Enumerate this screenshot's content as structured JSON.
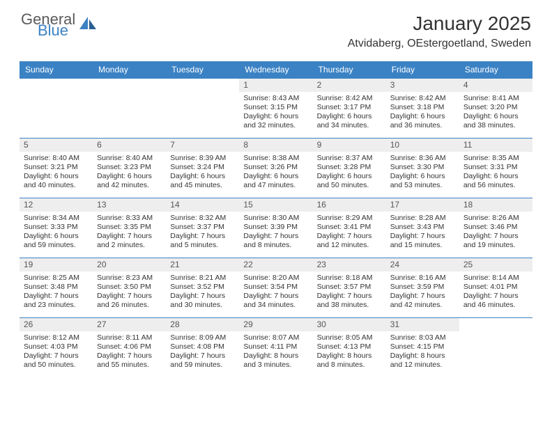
{
  "brand": {
    "word1": "General",
    "word2": "Blue"
  },
  "title": "January 2025",
  "location": "Atvidaberg, OEstergoetland, Sweden",
  "colors": {
    "header_bg": "#3b82c4",
    "header_text": "#ffffff",
    "daynum_bg": "#eeeeee",
    "rule": "#3b82c4",
    "logo_gray": "#5a5a5a",
    "logo_blue": "#3b82c4",
    "text": "#333333",
    "page_bg": "#ffffff"
  },
  "day_headers": [
    "Sunday",
    "Monday",
    "Tuesday",
    "Wednesday",
    "Thursday",
    "Friday",
    "Saturday"
  ],
  "weeks": [
    [
      {
        "n": "",
        "lines": []
      },
      {
        "n": "",
        "lines": []
      },
      {
        "n": "",
        "lines": []
      },
      {
        "n": "1",
        "lines": [
          "Sunrise: 8:43 AM",
          "Sunset: 3:15 PM",
          "Daylight: 6 hours",
          "and 32 minutes."
        ]
      },
      {
        "n": "2",
        "lines": [
          "Sunrise: 8:42 AM",
          "Sunset: 3:17 PM",
          "Daylight: 6 hours",
          "and 34 minutes."
        ]
      },
      {
        "n": "3",
        "lines": [
          "Sunrise: 8:42 AM",
          "Sunset: 3:18 PM",
          "Daylight: 6 hours",
          "and 36 minutes."
        ]
      },
      {
        "n": "4",
        "lines": [
          "Sunrise: 8:41 AM",
          "Sunset: 3:20 PM",
          "Daylight: 6 hours",
          "and 38 minutes."
        ]
      }
    ],
    [
      {
        "n": "5",
        "lines": [
          "Sunrise: 8:40 AM",
          "Sunset: 3:21 PM",
          "Daylight: 6 hours",
          "and 40 minutes."
        ]
      },
      {
        "n": "6",
        "lines": [
          "Sunrise: 8:40 AM",
          "Sunset: 3:23 PM",
          "Daylight: 6 hours",
          "and 42 minutes."
        ]
      },
      {
        "n": "7",
        "lines": [
          "Sunrise: 8:39 AM",
          "Sunset: 3:24 PM",
          "Daylight: 6 hours",
          "and 45 minutes."
        ]
      },
      {
        "n": "8",
        "lines": [
          "Sunrise: 8:38 AM",
          "Sunset: 3:26 PM",
          "Daylight: 6 hours",
          "and 47 minutes."
        ]
      },
      {
        "n": "9",
        "lines": [
          "Sunrise: 8:37 AM",
          "Sunset: 3:28 PM",
          "Daylight: 6 hours",
          "and 50 minutes."
        ]
      },
      {
        "n": "10",
        "lines": [
          "Sunrise: 8:36 AM",
          "Sunset: 3:30 PM",
          "Daylight: 6 hours",
          "and 53 minutes."
        ]
      },
      {
        "n": "11",
        "lines": [
          "Sunrise: 8:35 AM",
          "Sunset: 3:31 PM",
          "Daylight: 6 hours",
          "and 56 minutes."
        ]
      }
    ],
    [
      {
        "n": "12",
        "lines": [
          "Sunrise: 8:34 AM",
          "Sunset: 3:33 PM",
          "Daylight: 6 hours",
          "and 59 minutes."
        ]
      },
      {
        "n": "13",
        "lines": [
          "Sunrise: 8:33 AM",
          "Sunset: 3:35 PM",
          "Daylight: 7 hours",
          "and 2 minutes."
        ]
      },
      {
        "n": "14",
        "lines": [
          "Sunrise: 8:32 AM",
          "Sunset: 3:37 PM",
          "Daylight: 7 hours",
          "and 5 minutes."
        ]
      },
      {
        "n": "15",
        "lines": [
          "Sunrise: 8:30 AM",
          "Sunset: 3:39 PM",
          "Daylight: 7 hours",
          "and 8 minutes."
        ]
      },
      {
        "n": "16",
        "lines": [
          "Sunrise: 8:29 AM",
          "Sunset: 3:41 PM",
          "Daylight: 7 hours",
          "and 12 minutes."
        ]
      },
      {
        "n": "17",
        "lines": [
          "Sunrise: 8:28 AM",
          "Sunset: 3:43 PM",
          "Daylight: 7 hours",
          "and 15 minutes."
        ]
      },
      {
        "n": "18",
        "lines": [
          "Sunrise: 8:26 AM",
          "Sunset: 3:46 PM",
          "Daylight: 7 hours",
          "and 19 minutes."
        ]
      }
    ],
    [
      {
        "n": "19",
        "lines": [
          "Sunrise: 8:25 AM",
          "Sunset: 3:48 PM",
          "Daylight: 7 hours",
          "and 23 minutes."
        ]
      },
      {
        "n": "20",
        "lines": [
          "Sunrise: 8:23 AM",
          "Sunset: 3:50 PM",
          "Daylight: 7 hours",
          "and 26 minutes."
        ]
      },
      {
        "n": "21",
        "lines": [
          "Sunrise: 8:21 AM",
          "Sunset: 3:52 PM",
          "Daylight: 7 hours",
          "and 30 minutes."
        ]
      },
      {
        "n": "22",
        "lines": [
          "Sunrise: 8:20 AM",
          "Sunset: 3:54 PM",
          "Daylight: 7 hours",
          "and 34 minutes."
        ]
      },
      {
        "n": "23",
        "lines": [
          "Sunrise: 8:18 AM",
          "Sunset: 3:57 PM",
          "Daylight: 7 hours",
          "and 38 minutes."
        ]
      },
      {
        "n": "24",
        "lines": [
          "Sunrise: 8:16 AM",
          "Sunset: 3:59 PM",
          "Daylight: 7 hours",
          "and 42 minutes."
        ]
      },
      {
        "n": "25",
        "lines": [
          "Sunrise: 8:14 AM",
          "Sunset: 4:01 PM",
          "Daylight: 7 hours",
          "and 46 minutes."
        ]
      }
    ],
    [
      {
        "n": "26",
        "lines": [
          "Sunrise: 8:12 AM",
          "Sunset: 4:03 PM",
          "Daylight: 7 hours",
          "and 50 minutes."
        ]
      },
      {
        "n": "27",
        "lines": [
          "Sunrise: 8:11 AM",
          "Sunset: 4:06 PM",
          "Daylight: 7 hours",
          "and 55 minutes."
        ]
      },
      {
        "n": "28",
        "lines": [
          "Sunrise: 8:09 AM",
          "Sunset: 4:08 PM",
          "Daylight: 7 hours",
          "and 59 minutes."
        ]
      },
      {
        "n": "29",
        "lines": [
          "Sunrise: 8:07 AM",
          "Sunset: 4:11 PM",
          "Daylight: 8 hours",
          "and 3 minutes."
        ]
      },
      {
        "n": "30",
        "lines": [
          "Sunrise: 8:05 AM",
          "Sunset: 4:13 PM",
          "Daylight: 8 hours",
          "and 8 minutes."
        ]
      },
      {
        "n": "31",
        "lines": [
          "Sunrise: 8:03 AM",
          "Sunset: 4:15 PM",
          "Daylight: 8 hours",
          "and 12 minutes."
        ]
      },
      {
        "n": "",
        "lines": []
      }
    ]
  ]
}
